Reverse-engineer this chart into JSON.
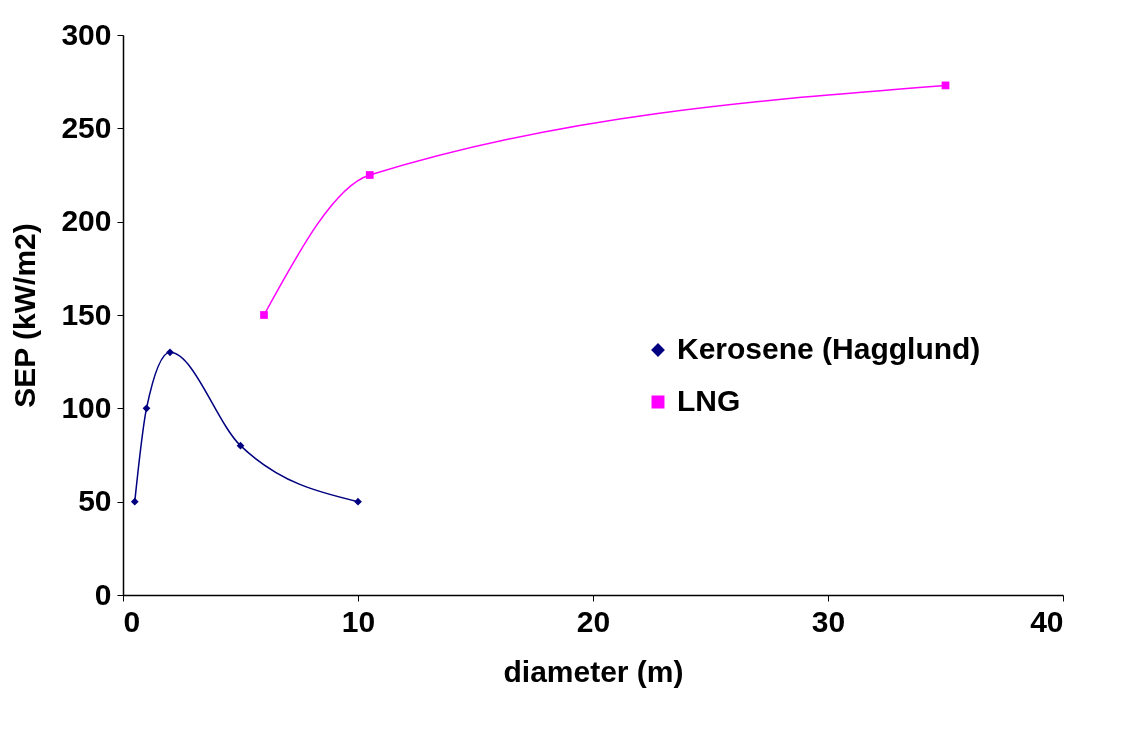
{
  "chart_data": {
    "type": "line",
    "xlabel": "diameter (m)",
    "ylabel": "SEP (kW/m2)",
    "series": [
      {
        "name": "Kerosene (Hagglund)",
        "color": "#000080",
        "marker": "diamond",
        "x": [
          0.5,
          1,
          2,
          5,
          10
        ],
        "values": [
          50,
          100,
          130,
          80,
          50
        ]
      },
      {
        "name": "LNG",
        "color": "#ff00ff",
        "marker": "square",
        "x": [
          6,
          10.5,
          35
        ],
        "values": [
          150,
          225,
          273
        ]
      }
    ],
    "xlim": [
      0,
      40
    ],
    "xticks": [
      0,
      10,
      20,
      30,
      40
    ],
    "ylim": [
      0,
      300
    ],
    "yticks": [
      0,
      50,
      100,
      150,
      200,
      250,
      300
    ],
    "grid": false,
    "legend": "right",
    "line_style": "solid"
  }
}
